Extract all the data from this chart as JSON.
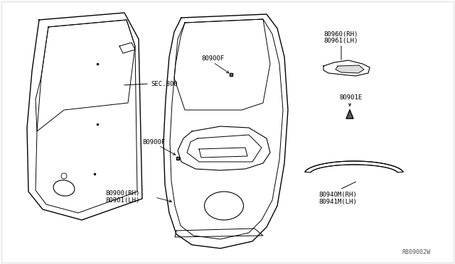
{
  "background_color": "#ffffff",
  "line_color": "#000000",
  "text_color": "#000000",
  "font_size": 6.5,
  "labels": {
    "sec800": "SEC.800",
    "80900F_top": "80900F",
    "80900F_mid": "80900F",
    "80900_rh": "80900(RH)",
    "80901_lh": "80901(LH)",
    "80960_rh": "80960(RH)",
    "80961_lh": "80961(LH)",
    "80901E": "80901E",
    "80940M_rh": "80940M(RH)",
    "80941M_lh": "80941M(LH)",
    "ref": "R809002W"
  }
}
